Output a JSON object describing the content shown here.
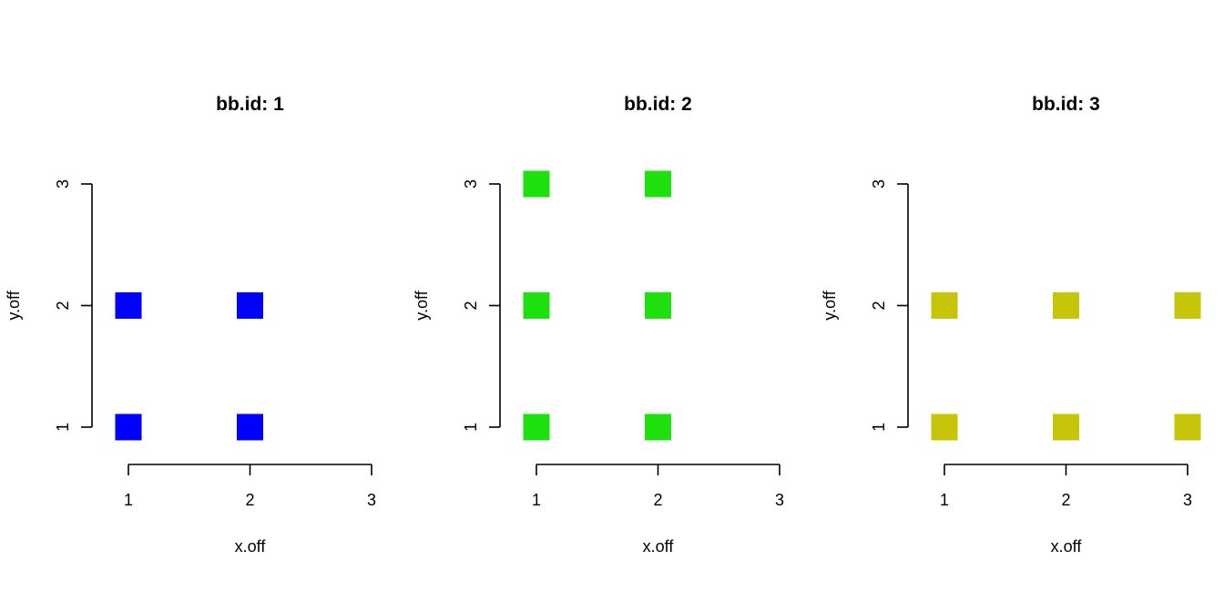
{
  "chart_data": [
    {
      "type": "scatter",
      "title": "bb.id: 1",
      "xlabel": "x.off",
      "ylabel": "y.off",
      "xlim": [
        1,
        3
      ],
      "ylim": [
        1,
        3
      ],
      "xticks": [
        "1",
        "2",
        "3"
      ],
      "yticks": [
        "1",
        "2",
        "3"
      ],
      "marker": "square",
      "color": "#0000ff",
      "grid": false,
      "points": [
        {
          "x": 1,
          "y": 1
        },
        {
          "x": 2,
          "y": 1
        },
        {
          "x": 1,
          "y": 2
        },
        {
          "x": 2,
          "y": 2
        }
      ]
    },
    {
      "type": "scatter",
      "title": "bb.id: 2",
      "xlabel": "x.off",
      "ylabel": "y.off",
      "xlim": [
        1,
        3
      ],
      "ylim": [
        1,
        3
      ],
      "xticks": [
        "1",
        "2",
        "3"
      ],
      "yticks": [
        "1",
        "2",
        "3"
      ],
      "marker": "square",
      "color": "#1fe00f",
      "grid": false,
      "points": [
        {
          "x": 1,
          "y": 1
        },
        {
          "x": 2,
          "y": 1
        },
        {
          "x": 1,
          "y": 2
        },
        {
          "x": 2,
          "y": 2
        },
        {
          "x": 1,
          "y": 3
        },
        {
          "x": 2,
          "y": 3
        }
      ]
    },
    {
      "type": "scatter",
      "title": "bb.id: 3",
      "xlabel": "x.off",
      "ylabel": "y.off",
      "xlim": [
        1,
        3
      ],
      "ylim": [
        1,
        3
      ],
      "xticks": [
        "1",
        "2",
        "3"
      ],
      "yticks": [
        "1",
        "2",
        "3"
      ],
      "marker": "square",
      "color": "#c6c50a",
      "grid": false,
      "points": [
        {
          "x": 1,
          "y": 1
        },
        {
          "x": 2,
          "y": 1
        },
        {
          "x": 3,
          "y": 1
        },
        {
          "x": 1,
          "y": 2
        },
        {
          "x": 2,
          "y": 2
        },
        {
          "x": 3,
          "y": 2
        }
      ]
    }
  ]
}
